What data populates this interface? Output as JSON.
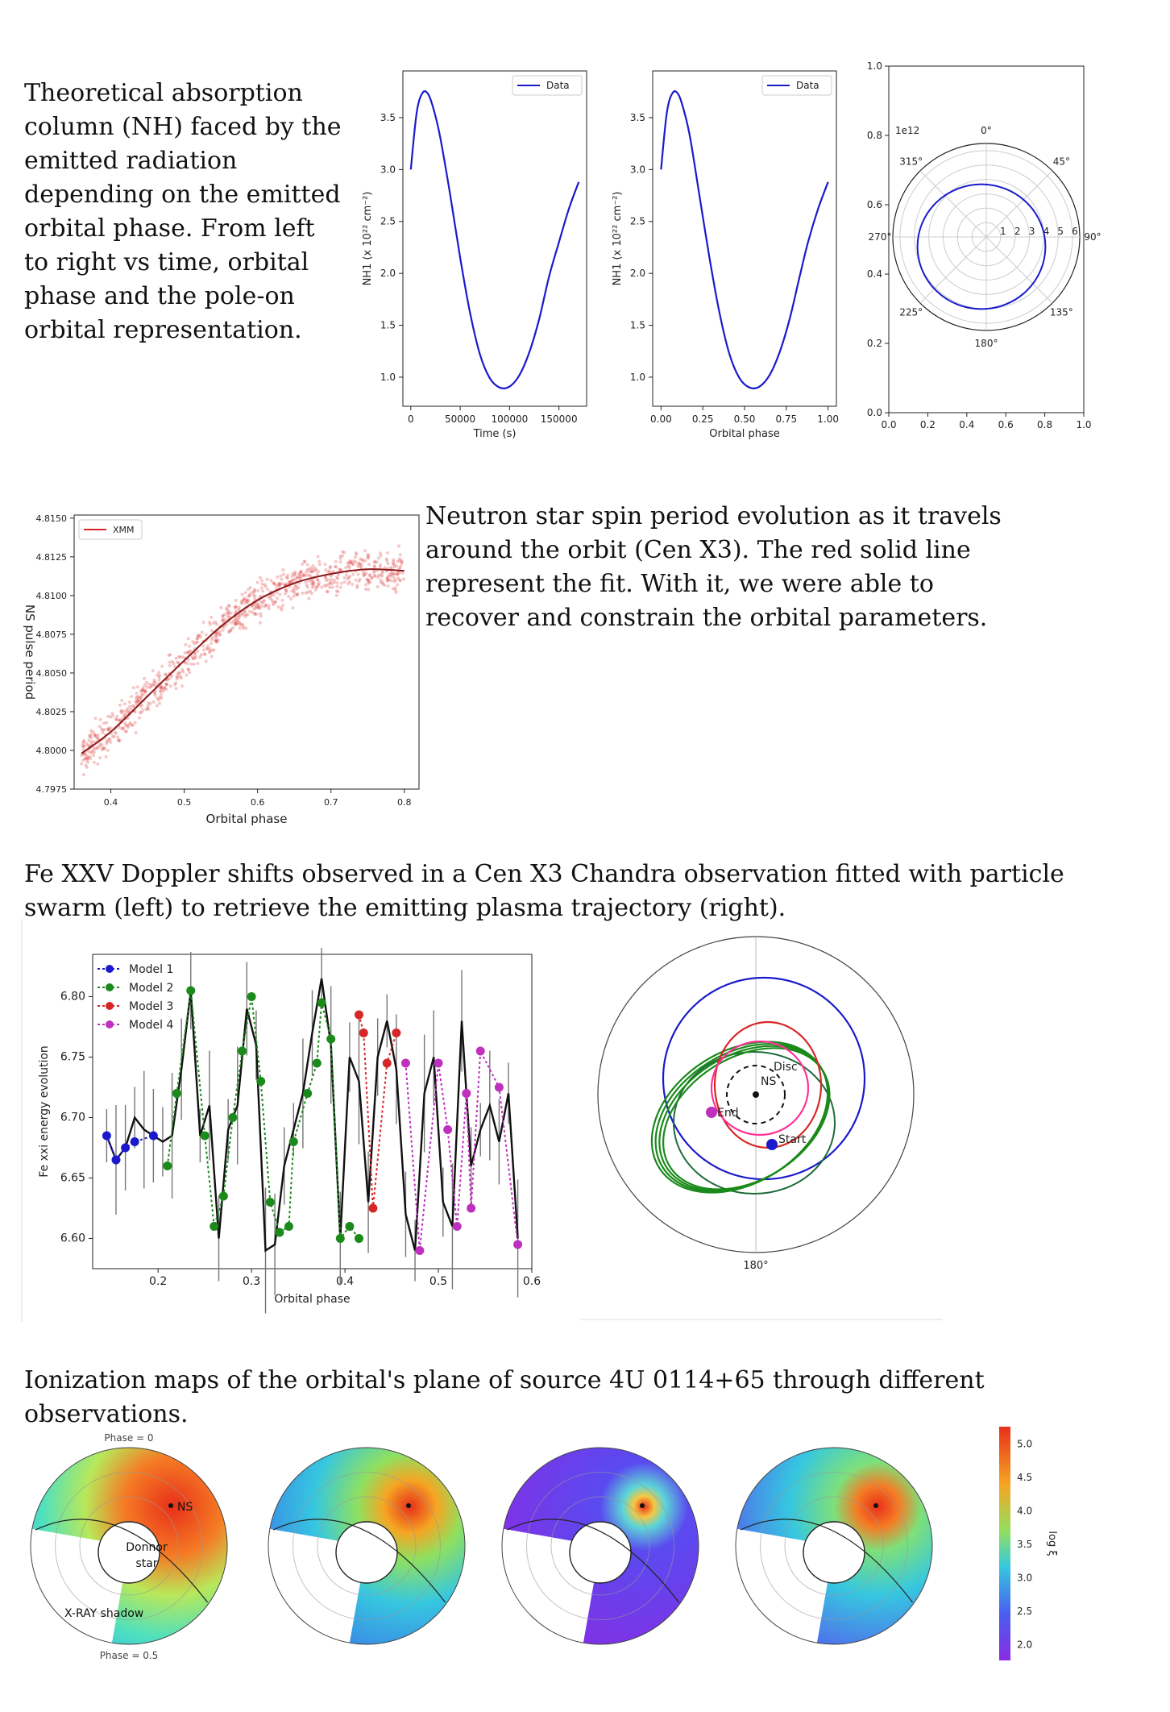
{
  "captions": {
    "nh": "Theoretical absorption column (NH) faced by the emitted radiation depending on the emitted orbital phase. From left to right vs time, orbital phase and the pole-on orbital representation.",
    "spin": "Neutron star spin period evolution as it travels around the orbit (Cen X3). The red solid line represent the fit. With it, we were able to recover and constrain the orbital parameters.",
    "doppler": "Fe XXV Doppler shifts observed in a Cen X3 Chandra observation fitted with particle swarm (left) to retrieve the emitting  plasma trajectory (right).",
    "ion": "Ionization maps of the orbital's plane of source 4U 0114+65 through different observations."
  },
  "colors": {
    "blue": "#1a1acc",
    "red": "#d62728",
    "green": "#1a8a1a",
    "magenta": "#bf30bf",
    "black": "#111111"
  },
  "chart_data": [
    {
      "type": "line",
      "xlabel": "Time (s)",
      "ylabel": "NH1 (x 10²² cm⁻²)",
      "legend": "Data",
      "legend_position": "top-right",
      "xlim": [
        -8000,
        178000
      ],
      "ylim": [
        0.72,
        3.95
      ],
      "xticks": [
        "0",
        "50000",
        "100000",
        "150000"
      ],
      "xtick_values": [
        0,
        50000,
        100000,
        150000
      ],
      "yticks": [
        "1.0",
        "1.5",
        "2.0",
        "2.5",
        "3.0",
        "3.5"
      ],
      "ytick_values": [
        1.0,
        1.5,
        2.0,
        2.5,
        3.0,
        3.5
      ],
      "x": [
        0,
        6000,
        12000,
        18000,
        24000,
        30000,
        40000,
        50000,
        60000,
        70000,
        80000,
        90000,
        100000,
        110000,
        120000,
        130000,
        140000,
        150000,
        160000,
        170000
      ],
      "y": [
        3.0,
        3.55,
        3.74,
        3.72,
        3.55,
        3.3,
        2.75,
        2.15,
        1.62,
        1.22,
        0.99,
        0.9,
        0.91,
        1.02,
        1.24,
        1.56,
        1.97,
        2.3,
        2.62,
        2.88
      ]
    },
    {
      "type": "line",
      "xlabel": "Orbital phase",
      "ylabel": "NH1 (x 10²² cm⁻²)",
      "legend": "Data",
      "legend_position": "top-right",
      "xlim": [
        -0.05,
        1.05
      ],
      "ylim": [
        0.72,
        3.95
      ],
      "xticks": [
        "0.00",
        "0.25",
        "0.50",
        "0.75",
        "1.00"
      ],
      "xtick_values": [
        0,
        0.25,
        0.5,
        0.75,
        1.0
      ],
      "yticks": [
        "1.0",
        "1.5",
        "2.0",
        "2.5",
        "3.0",
        "3.5"
      ],
      "ytick_values": [
        1.0,
        1.5,
        2.0,
        2.5,
        3.0,
        3.5
      ],
      "x": [
        0,
        0.035,
        0.07,
        0.105,
        0.14,
        0.175,
        0.23,
        0.29,
        0.35,
        0.41,
        0.47,
        0.53,
        0.59,
        0.65,
        0.71,
        0.77,
        0.83,
        0.88,
        0.94,
        1.0
      ],
      "y": [
        3.0,
        3.55,
        3.74,
        3.72,
        3.55,
        3.3,
        2.75,
        2.15,
        1.62,
        1.22,
        0.99,
        0.9,
        0.91,
        1.02,
        1.24,
        1.56,
        1.97,
        2.3,
        2.62,
        2.88
      ]
    },
    {
      "type": "polar",
      "offset_label": "1e12",
      "angle_labels": [
        "0°",
        "45°",
        "90°",
        "135°",
        "180°",
        "225°",
        "270°",
        "315°"
      ],
      "radial_labels": [
        "1",
        "2",
        "3",
        "4",
        "5",
        "6"
      ],
      "xticks": [
        "0.0",
        "0.2",
        "0.4",
        "0.6",
        "0.8",
        "1.0"
      ],
      "yticks": [
        "0.0",
        "0.2",
        "0.4",
        "0.6",
        "0.8",
        "1.0"
      ],
      "orbit_radius_1e12": 4.0
    },
    {
      "type": "scatter",
      "xlabel": "Orbital phase",
      "ylabel": "NS pulse period",
      "legend": "XMM",
      "legend_position": "top-left",
      "xlim": [
        0.35,
        0.82
      ],
      "ylim": [
        4.7975,
        4.8152
      ],
      "xticks": [
        "0.4",
        "0.5",
        "0.6",
        "0.7",
        "0.8"
      ],
      "xtick_values": [
        0.4,
        0.5,
        0.6,
        0.7,
        0.8
      ],
      "yticks": [
        "4.7975",
        "4.8000",
        "4.8025",
        "4.8050",
        "4.8075",
        "4.8100",
        "4.8125",
        "4.8150"
      ],
      "ytick_values": [
        4.7975,
        4.8,
        4.8025,
        4.805,
        4.8075,
        4.81,
        4.8125,
        4.815
      ],
      "fit_x": [
        0.36,
        0.4,
        0.45,
        0.5,
        0.55,
        0.6,
        0.65,
        0.7,
        0.75,
        0.8
      ],
      "fit_y": [
        4.7998,
        4.8012,
        4.8035,
        4.8058,
        4.808,
        4.8097,
        4.8108,
        4.8114,
        4.8117,
        4.8116
      ]
    },
    {
      "type": "line",
      "xlabel": "Orbital phase",
      "ylabel": "Fe xxi energy evolution",
      "xlim": [
        0.13,
        0.6
      ],
      "ylim": [
        6.575,
        6.835
      ],
      "xticks": [
        "0.2",
        "0.3",
        "0.4",
        "0.5",
        "0.6"
      ],
      "xtick_values": [
        0.2,
        0.3,
        0.4,
        0.5,
        0.6
      ],
      "yticks": [
        "6.60",
        "6.65",
        "6.70",
        "6.75",
        "6.80"
      ],
      "ytick_values": [
        6.6,
        6.65,
        6.7,
        6.75,
        6.8
      ],
      "series": [
        {
          "name": "Model 1",
          "color": "#1a1acc",
          "x": [
            0.145,
            0.155,
            0.165,
            0.175,
            0.195
          ],
          "y": [
            6.685,
            6.665,
            6.675,
            6.68,
            6.685
          ]
        },
        {
          "name": "Model 2",
          "color": "#1a8a1a",
          "x": [
            0.21,
            0.22,
            0.235,
            0.25,
            0.26,
            0.27,
            0.28,
            0.29,
            0.3,
            0.31,
            0.32,
            0.33,
            0.34,
            0.345,
            0.36,
            0.37,
            0.375,
            0.385,
            0.395,
            0.405,
            0.415
          ],
          "y": [
            6.66,
            6.72,
            6.805,
            6.685,
            6.61,
            6.635,
            6.7,
            6.755,
            6.8,
            6.73,
            6.63,
            6.605,
            6.61,
            6.68,
            6.72,
            6.745,
            6.795,
            6.765,
            6.6,
            6.61,
            6.6
          ]
        },
        {
          "name": "Model 3",
          "color": "#d62728",
          "x": [
            0.415,
            0.42,
            0.43,
            0.445,
            0.455
          ],
          "y": [
            6.785,
            6.77,
            6.625,
            6.745,
            6.77
          ]
        },
        {
          "name": "Model 4",
          "color": "#bf30bf",
          "x": [
            0.465,
            0.48,
            0.5,
            0.51,
            0.52,
            0.53,
            0.535,
            0.545,
            0.565,
            0.585
          ],
          "y": [
            6.745,
            6.59,
            6.745,
            6.69,
            6.61,
            6.72,
            6.625,
            6.755,
            6.725,
            6.595
          ]
        }
      ],
      "data_x": [
        0.145,
        0.155,
        0.165,
        0.175,
        0.185,
        0.195,
        0.205,
        0.215,
        0.225,
        0.235,
        0.245,
        0.255,
        0.265,
        0.275,
        0.285,
        0.295,
        0.305,
        0.315,
        0.325,
        0.335,
        0.345,
        0.355,
        0.365,
        0.375,
        0.385,
        0.395,
        0.405,
        0.415,
        0.425,
        0.435,
        0.445,
        0.455,
        0.465,
        0.475,
        0.485,
        0.495,
        0.505,
        0.515,
        0.525,
        0.535,
        0.545,
        0.555,
        0.565,
        0.575,
        0.585
      ],
      "data_y": [
        6.685,
        6.665,
        6.675,
        6.7,
        6.69,
        6.685,
        6.68,
        6.685,
        6.74,
        6.805,
        6.685,
        6.71,
        6.6,
        6.69,
        6.71,
        6.79,
        6.76,
        6.59,
        6.595,
        6.66,
        6.69,
        6.72,
        6.77,
        6.815,
        6.76,
        6.6,
        6.75,
        6.73,
        6.63,
        6.75,
        6.78,
        6.74,
        6.62,
        6.59,
        6.72,
        6.75,
        6.63,
        6.61,
        6.78,
        6.66,
        6.69,
        6.71,
        6.68,
        6.72,
        6.6
      ]
    },
    {
      "type": "polar",
      "angle_label": "180°",
      "labels": [
        "Disc",
        "NS",
        "End",
        "Start"
      ]
    }
  ],
  "ion_maps": {
    "labels": {
      "phase0": "Phase = 0",
      "phase05": "Phase = 0.5",
      "ns": "NS",
      "donor": "Donnor\nstar",
      "shadow": "X-RAY shadow"
    },
    "colorbar": {
      "ticks": [
        "5.0",
        "4.5",
        "4.0",
        "3.5",
        "3.0",
        "2.5",
        "2.0"
      ],
      "values": [
        5.0,
        4.5,
        4.0,
        3.5,
        3.0,
        2.5,
        2.0
      ],
      "label": "log ξ"
    }
  }
}
